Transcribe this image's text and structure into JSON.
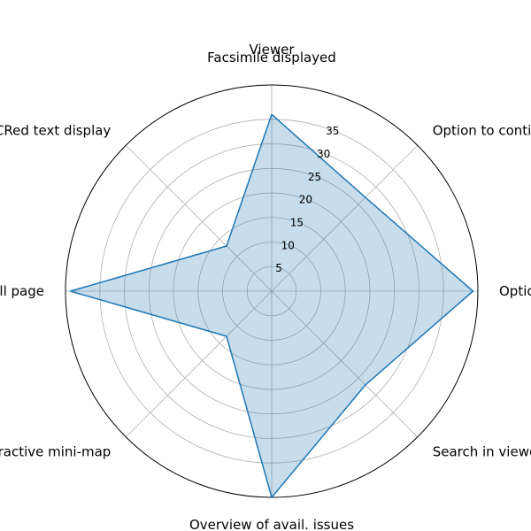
{
  "chart_data": {
    "type": "radar",
    "title": "Viewer",
    "categories": [
      "Facsimile displayed",
      "Option to continue to next result",
      "Option to continue to next page",
      "Search in viewed page",
      "Overview of avail. issues",
      "Interactive mini-map",
      "Show full page",
      "OCRed text display"
    ],
    "series": [
      {
        "values": [
          36,
          27,
          41,
          27,
          42,
          13,
          41,
          13
        ]
      }
    ],
    "rlim": [
      0,
      42
    ],
    "rticks": [
      5,
      10,
      15,
      20,
      25,
      30,
      35
    ],
    "grid": true,
    "colors": {
      "series": "#1f77b4",
      "grid": "#b0b0b0",
      "frame": "#000000"
    }
  }
}
